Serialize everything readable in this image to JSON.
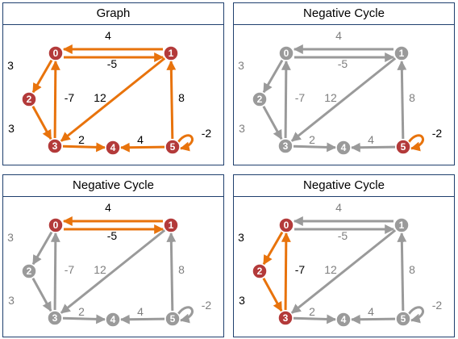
{
  "colors": {
    "active": "#e8730c",
    "inactive": "#9a9a9a",
    "node_active": "#b33a3a",
    "node_inactive": "#9a9a9a"
  },
  "nodes": [
    "0",
    "1",
    "2",
    "3",
    "4",
    "5"
  ],
  "edges": [
    {
      "from": "1",
      "to": "0",
      "weight": "4"
    },
    {
      "from": "0",
      "to": "1",
      "weight": "-5"
    },
    {
      "from": "0",
      "to": "2",
      "weight": "3"
    },
    {
      "from": "3",
      "to": "0",
      "weight": "-7"
    },
    {
      "from": "2",
      "to": "3",
      "weight": "3"
    },
    {
      "from": "1",
      "to": "3",
      "weight": "12"
    },
    {
      "from": "3",
      "to": "4",
      "weight": "2"
    },
    {
      "from": "5",
      "to": "4",
      "weight": "4"
    },
    {
      "from": "5",
      "to": "1",
      "weight": "8"
    },
    {
      "from": "5",
      "to": "5",
      "weight": "-2"
    }
  ],
  "panels": [
    {
      "title": "Graph",
      "active_nodes": [
        "0",
        "1",
        "2",
        "3",
        "4",
        "5"
      ],
      "active_edges": [
        0,
        1,
        2,
        3,
        4,
        5,
        6,
        7,
        8,
        9
      ]
    },
    {
      "title": "Negative Cycle",
      "active_nodes": [
        "5"
      ],
      "active_edges": [
        9
      ]
    },
    {
      "title": "Negative Cycle",
      "active_nodes": [
        "0",
        "1"
      ],
      "active_edges": [
        0,
        1
      ]
    },
    {
      "title": "Negative Cycle",
      "active_nodes": [
        "0",
        "2",
        "3"
      ],
      "active_edges": [
        2,
        3,
        4
      ]
    }
  ]
}
